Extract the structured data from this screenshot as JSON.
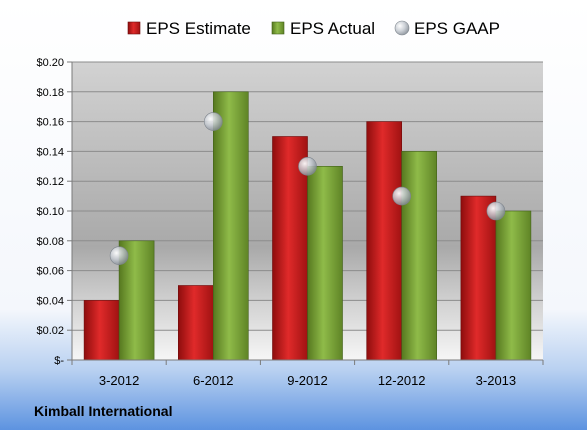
{
  "chart_data": {
    "type": "bar",
    "categories": [
      "3-2012",
      "6-2012",
      "9-2012",
      "12-2012",
      "3-2013"
    ],
    "series": [
      {
        "name": "EPS Estimate",
        "kind": "bar",
        "color": "#cc1f1f",
        "values": [
          0.04,
          0.05,
          0.15,
          0.16,
          0.11
        ]
      },
      {
        "name": "EPS Actual",
        "kind": "bar",
        "color": "#7ba33a",
        "values": [
          0.08,
          0.18,
          0.13,
          0.14,
          0.1
        ]
      },
      {
        "name": "EPS GAAP",
        "kind": "marker",
        "color": "#b9bfc6",
        "values": [
          0.07,
          0.16,
          0.13,
          0.11,
          0.1
        ]
      }
    ],
    "yticks": [
      "$-",
      "$0.02",
      "$0.04",
      "$0.06",
      "$0.08",
      "$0.10",
      "$0.12",
      "$0.14",
      "$0.16",
      "$0.18",
      "$0.20"
    ],
    "ylim": [
      0,
      0.2
    ],
    "ystep": 0.02,
    "grid": true,
    "legend_position": "top",
    "footer": "Kimball International"
  }
}
